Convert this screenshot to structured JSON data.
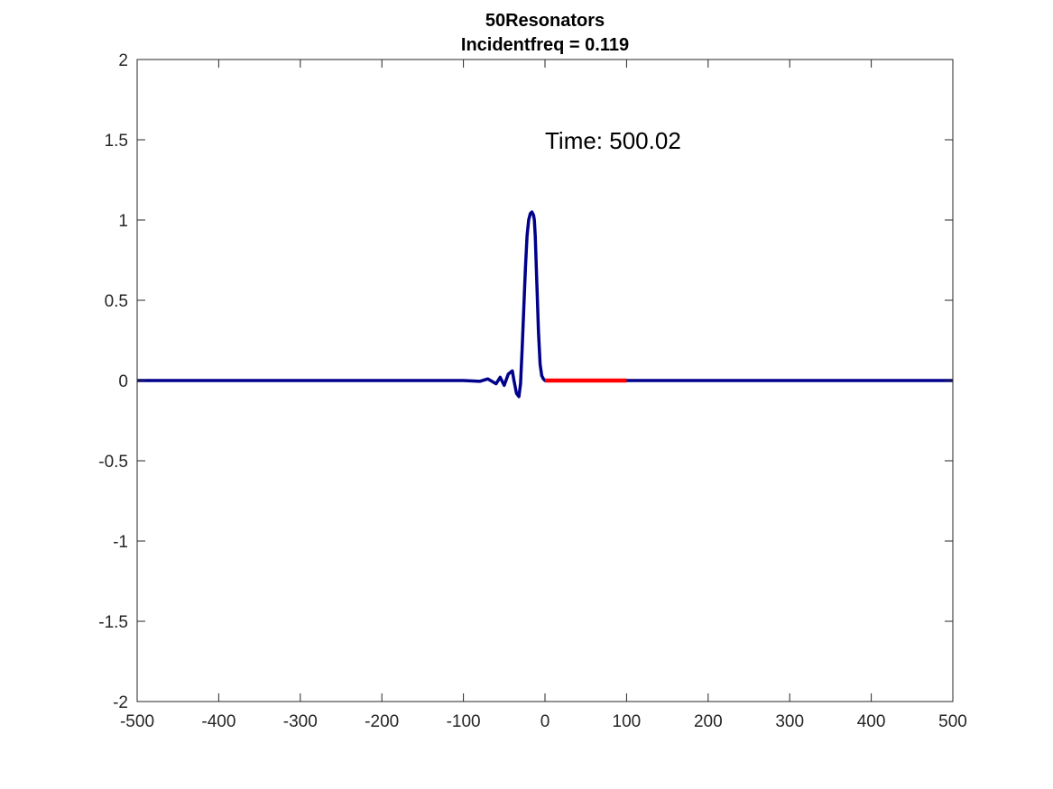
{
  "chart_data": {
    "type": "line",
    "title_lines": [
      "50Resonators",
      "Incidentfreq = 0.119"
    ],
    "xlabel": "",
    "ylabel": "",
    "xlim": [
      -500,
      500
    ],
    "ylim": [
      -2,
      2
    ],
    "xticks": [
      -500,
      -400,
      -300,
      -200,
      -100,
      0,
      100,
      200,
      300,
      400,
      500
    ],
    "yticks": [
      -2,
      -1.5,
      -1,
      -0.5,
      0,
      0.5,
      1,
      1.5,
      2
    ],
    "xtick_labels": [
      "-500",
      "-400",
      "-300",
      "-200",
      "-100",
      "0",
      "100",
      "200",
      "300",
      "400",
      "500"
    ],
    "ytick_labels": [
      "-2",
      "-1.5",
      "-1",
      "-0.5",
      "0",
      "0.5",
      "1",
      "1.5",
      "2"
    ],
    "grid": false,
    "annotation": {
      "text": "Time: 500.02",
      "x": 0,
      "y": 1.5
    },
    "series": [
      {
        "color": "#00008b",
        "x": [
          -500,
          -100,
          -80,
          -70,
          -60,
          -55,
          -50,
          -45,
          -40,
          -38,
          -35,
          -32,
          -30,
          -28,
          -26,
          -24,
          -22,
          -20,
          -18,
          -16,
          -14,
          -13,
          -12,
          -10,
          -8,
          -6,
          -4,
          -2,
          0,
          100,
          500
        ],
        "y": [
          0,
          0,
          -0.005,
          0.01,
          -0.02,
          0.02,
          -0.03,
          0.04,
          0.06,
          0.0,
          -0.08,
          -0.1,
          -0.02,
          0.2,
          0.45,
          0.7,
          0.9,
          1.0,
          1.04,
          1.05,
          1.03,
          1.0,
          0.9,
          0.6,
          0.3,
          0.1,
          0.03,
          0.01,
          0,
          0,
          0
        ]
      },
      {
        "color": "#ff0000",
        "x": [
          0,
          100
        ],
        "y": [
          0,
          0
        ]
      }
    ]
  }
}
